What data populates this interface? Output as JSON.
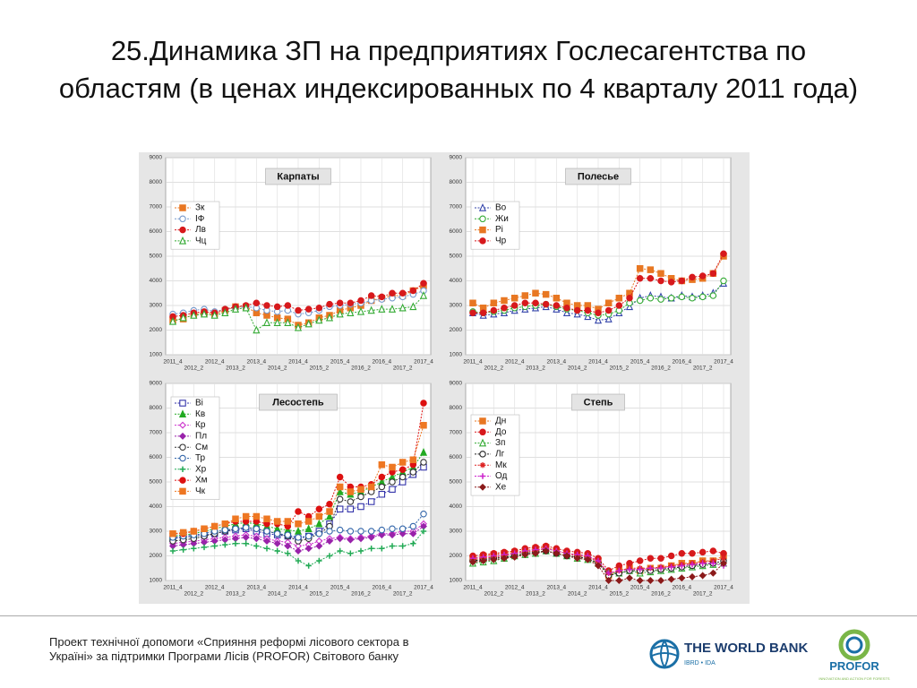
{
  "slide_title": "25.Динамика ЗП на предприятиях Гослесагентства по областям (в ценах индексированных по 4 кварталу 2011 года)",
  "footer_text": "Проект технічної допомоги «Сприяння реформі лісового сектора в Україні» за підтримки Програми Лісів (PROFOR) Світового банку",
  "world_bank": {
    "name": "THE WORLD BANK",
    "sub": "IBRD • IDA"
  },
  "profor": {
    "name": "PROFOR",
    "sub": "INNOVATION AND ACTION FOR FORESTS"
  },
  "chart_data": [
    {
      "type": "line",
      "title": "Карпаты",
      "categories": [
        "2011_4",
        null,
        "2012_2",
        null,
        "2012_4",
        null,
        "2013_2",
        null,
        "2013_4",
        null,
        "2014_2",
        null,
        "2014_4",
        null,
        "2015_2",
        null,
        "2015_4",
        null,
        "2016_2",
        null,
        "2016_4",
        null,
        "2017_2",
        null,
        "2017_4"
      ],
      "ylim": [
        1000,
        9000
      ],
      "yticks": [
        1000,
        2000,
        3000,
        4000,
        5000,
        6000,
        7000,
        8000,
        9000
      ],
      "grid": true,
      "legend": "upper left",
      "series": [
        {
          "name": "Зк",
          "color": "#e87722",
          "marker": "square",
          "filled": true,
          "values": [
            2400,
            2450,
            2650,
            2700,
            2650,
            2800,
            2950,
            2950,
            2700,
            2600,
            2500,
            2450,
            2200,
            2300,
            2500,
            2600,
            2800,
            2900,
            3000,
            3200,
            3300,
            3400,
            3400,
            3600,
            3800
          ]
        },
        {
          "name": "ІФ",
          "color": "#7799cc",
          "marker": "circle",
          "filled": false,
          "values": [
            2650,
            2700,
            2800,
            2850,
            2750,
            2850,
            2900,
            2950,
            2900,
            2800,
            2750,
            2800,
            2650,
            2700,
            2800,
            2950,
            3000,
            3050,
            3100,
            3200,
            3250,
            3300,
            3350,
            3450,
            3600
          ]
        },
        {
          "name": "Лв",
          "color": "#d7191c",
          "marker": "circle",
          "filled": true,
          "values": [
            2550,
            2600,
            2700,
            2750,
            2700,
            2850,
            2950,
            3000,
            3100,
            3000,
            2950,
            3000,
            2800,
            2850,
            2900,
            3050,
            3100,
            3100,
            3200,
            3400,
            3350,
            3500,
            3500,
            3600,
            3900
          ]
        },
        {
          "name": "Чц",
          "color": "#33aa33",
          "marker": "triangle",
          "filled": false,
          "values": [
            2350,
            2500,
            2600,
            2650,
            2600,
            2700,
            2850,
            2900,
            2000,
            2300,
            2300,
            2300,
            2100,
            2250,
            2400,
            2500,
            2650,
            2700,
            2750,
            2800,
            2850,
            2850,
            2900,
            2950,
            3400
          ]
        }
      ]
    },
    {
      "type": "line",
      "title": "Полесье",
      "categories": [
        "2011_4",
        null,
        "2012_2",
        null,
        "2012_4",
        null,
        "2013_2",
        null,
        "2013_4",
        null,
        "2014_2",
        null,
        "2014_4",
        null,
        "2015_2",
        null,
        "2015_4",
        null,
        "2016_2",
        null,
        "2016_4",
        null,
        "2017_2",
        null,
        "2017_4"
      ],
      "ylim": [
        1000,
        9000
      ],
      "yticks": [
        1000,
        2000,
        3000,
        4000,
        5000,
        6000,
        7000,
        8000,
        9000
      ],
      "grid": true,
      "legend": "upper left",
      "series": [
        {
          "name": "Во",
          "color": "#3344aa",
          "marker": "triangle",
          "filled": false,
          "values": [
            2700,
            2600,
            2650,
            2700,
            2800,
            2850,
            2900,
            2950,
            2850,
            2700,
            2650,
            2550,
            2400,
            2450,
            2700,
            2950,
            3300,
            3400,
            3350,
            3300,
            3400,
            3350,
            3400,
            3500,
            3900
          ]
        },
        {
          "name": "Жи",
          "color": "#33aa33",
          "marker": "circle",
          "filled": false,
          "values": [
            2750,
            2700,
            2750,
            2800,
            2900,
            2950,
            3000,
            3050,
            2950,
            2850,
            2800,
            2700,
            2600,
            2650,
            2800,
            3100,
            3200,
            3300,
            3250,
            3300,
            3350,
            3300,
            3350,
            3400,
            4000
          ]
        },
        {
          "name": "Рі",
          "color": "#e87722",
          "marker": "square",
          "filled": true,
          "values": [
            3100,
            2900,
            3100,
            3200,
            3300,
            3400,
            3500,
            3450,
            3300,
            3100,
            3000,
            3000,
            2850,
            3100,
            3300,
            3500,
            4500,
            4450,
            4300,
            4100,
            4000,
            4050,
            4100,
            4300,
            5000
          ]
        },
        {
          "name": "Чр",
          "color": "#d7191c",
          "marker": "circle",
          "filled": true,
          "values": [
            2700,
            2700,
            2800,
            2900,
            3000,
            3100,
            3100,
            3050,
            3000,
            2900,
            2800,
            2800,
            2700,
            2800,
            3000,
            3300,
            4100,
            4100,
            4000,
            3950,
            4000,
            4150,
            4200,
            4300,
            5100
          ]
        }
      ]
    },
    {
      "type": "line",
      "title": "Лесостепь",
      "categories": [
        "2011_4",
        null,
        "2012_2",
        null,
        "2012_4",
        null,
        "2013_2",
        null,
        "2013_4",
        null,
        "2014_2",
        null,
        "2014_4",
        null,
        "2015_2",
        null,
        "2015_4",
        null,
        "2016_2",
        null,
        "2016_4",
        null,
        "2017_2",
        null,
        "2017_4"
      ],
      "ylim": [
        1000,
        9000
      ],
      "yticks": [
        1000,
        2000,
        3000,
        4000,
        5000,
        6000,
        7000,
        8000,
        9000
      ],
      "grid": true,
      "legend": "upper left",
      "series": [
        {
          "name": "Ві",
          "color": "#3333aa",
          "marker": "square",
          "filled": false,
          "values": [
            2700,
            2750,
            2800,
            2850,
            2900,
            3000,
            3050,
            3100,
            3000,
            2900,
            2850,
            2800,
            2700,
            2800,
            3000,
            3300,
            3900,
            3900,
            4000,
            4200,
            4500,
            4700,
            5000,
            5300,
            5600
          ]
        },
        {
          "name": "Кв",
          "color": "#22aa22",
          "marker": "triangle",
          "filled": true,
          "values": [
            2800,
            2850,
            2900,
            3000,
            3100,
            3200,
            3300,
            3350,
            3300,
            3200,
            3100,
            3050,
            3000,
            3100,
            3300,
            3600,
            4600,
            4500,
            4600,
            4800,
            5000,
            5200,
            5400,
            5600,
            6200
          ]
        },
        {
          "name": "Кр",
          "color": "#cc33cc",
          "marker": "diamond",
          "filled": false,
          "values": [
            2500,
            2550,
            2600,
            2650,
            2700,
            2750,
            2800,
            2850,
            2800,
            2700,
            2600,
            2550,
            2400,
            2450,
            2600,
            2700,
            2750,
            2700,
            2750,
            2800,
            2900,
            2900,
            3000,
            3000,
            3300
          ]
        },
        {
          "name": "Пл",
          "color": "#9922aa",
          "marker": "diamond",
          "filled": true,
          "values": [
            2400,
            2450,
            2500,
            2550,
            2600,
            2650,
            2700,
            2750,
            2700,
            2600,
            2500,
            2400,
            2200,
            2300,
            2400,
            2600,
            2700,
            2650,
            2700,
            2750,
            2850,
            2850,
            2900,
            2900,
            3200
          ]
        },
        {
          "name": "См",
          "color": "#333333",
          "marker": "circle",
          "filled": false,
          "values": [
            2600,
            2650,
            2700,
            2800,
            2900,
            3000,
            3100,
            3150,
            3100,
            3000,
            2900,
            2800,
            2600,
            2700,
            2900,
            3200,
            4300,
            4200,
            4400,
            4600,
            4800,
            5000,
            5200,
            5400,
            5800
          ]
        },
        {
          "name": "Тр",
          "color": "#3366aa",
          "marker": "circle",
          "filled": false,
          "values": [
            2750,
            2800,
            2850,
            2900,
            3000,
            3050,
            3100,
            3150,
            3100,
            3000,
            2900,
            2850,
            2750,
            2800,
            2900,
            3000,
            3050,
            3000,
            3000,
            3000,
            3050,
            3100,
            3100,
            3200,
            3700
          ]
        },
        {
          "name": "Хр",
          "color": "#22aa55",
          "marker": "plus",
          "filled": false,
          "values": [
            2200,
            2250,
            2300,
            2350,
            2400,
            2450,
            2500,
            2500,
            2400,
            2300,
            2200,
            2100,
            1800,
            1600,
            1800,
            2000,
            2200,
            2100,
            2200,
            2300,
            2300,
            2400,
            2400,
            2500,
            3000
          ]
        },
        {
          "name": "Хм",
          "color": "#dd1111",
          "marker": "circle",
          "filled": true,
          "values": [
            2900,
            2900,
            3000,
            3100,
            3200,
            3300,
            3400,
            3400,
            3400,
            3300,
            3300,
            3200,
            3800,
            3600,
            3900,
            4100,
            5200,
            4800,
            4800,
            4900,
            5200,
            5400,
            5500,
            5700,
            8200
          ]
        },
        {
          "name": "Чк",
          "color": "#ee7722",
          "marker": "square",
          "filled": true,
          "values": [
            2900,
            2950,
            3000,
            3100,
            3200,
            3300,
            3500,
            3600,
            3600,
            3500,
            3400,
            3400,
            3300,
            3400,
            3600,
            3800,
            4800,
            4600,
            4700,
            4800,
            5700,
            5600,
            5800,
            5900,
            7300
          ]
        }
      ]
    },
    {
      "type": "line",
      "title": "Степь",
      "categories": [
        "2011_4",
        null,
        "2012_2",
        null,
        "2012_4",
        null,
        "2013_2",
        null,
        "2013_4",
        null,
        "2014_2",
        null,
        "2014_4",
        null,
        "2015_2",
        null,
        "2015_4",
        null,
        "2016_2",
        null,
        "2016_4",
        null,
        "2017_2",
        null,
        "2017_4"
      ],
      "ylim": [
        1000,
        9000
      ],
      "yticks": [
        1000,
        2000,
        3000,
        4000,
        5000,
        6000,
        7000,
        8000,
        9000
      ],
      "grid": true,
      "legend": "upper left",
      "series": [
        {
          "name": "Дн",
          "color": "#e87722",
          "marker": "square",
          "filled": true,
          "values": [
            1900,
            2000,
            2050,
            2100,
            2150,
            2200,
            2300,
            2350,
            2200,
            2100,
            2050,
            2000,
            1800,
            1200,
            1400,
            1500,
            1400,
            1500,
            1500,
            1600,
            1700,
            1700,
            1800,
            1800,
            2000
          ]
        },
        {
          "name": "До",
          "color": "#d7191c",
          "marker": "circle",
          "filled": true,
          "values": [
            2000,
            2050,
            2100,
            2150,
            2200,
            2300,
            2350,
            2400,
            2300,
            2200,
            2150,
            2100,
            1900,
            1400,
            1600,
            1700,
            1800,
            1900,
            1900,
            2000,
            2100,
            2100,
            2150,
            2200,
            2100
          ]
        },
        {
          "name": "Зп",
          "color": "#33aa33",
          "marker": "triangle",
          "filled": false,
          "values": [
            1700,
            1750,
            1800,
            1900,
            2000,
            2050,
            2100,
            2200,
            2100,
            2000,
            1900,
            1850,
            1700,
            1300,
            1300,
            1400,
            1300,
            1350,
            1400,
            1450,
            1500,
            1550,
            1600,
            1650,
            1700
          ]
        },
        {
          "name": "Лг",
          "color": "#222222",
          "marker": "circle",
          "filled": false,
          "values": [
            1800,
            1850,
            1900,
            1950,
            2000,
            2100,
            2150,
            2200,
            2100,
            2000,
            1950,
            1900,
            1700,
            1200,
            1300,
            1400,
            1400,
            1400,
            1450,
            1500,
            1550,
            1600,
            1650,
            1700,
            1800
          ]
        },
        {
          "name": "Мк",
          "color": "#dd2222",
          "marker": "star",
          "filled": false,
          "values": [
            1850,
            1900,
            1950,
            2000,
            2100,
            2150,
            2200,
            2300,
            2200,
            2100,
            2000,
            1950,
            1750,
            1300,
            1400,
            1500,
            1500,
            1500,
            1550,
            1600,
            1650,
            1700,
            1750,
            1800,
            1900
          ]
        },
        {
          "name": "Од",
          "color": "#cc22cc",
          "marker": "plus",
          "filled": false,
          "values": [
            1900,
            1950,
            2000,
            2050,
            2100,
            2200,
            2250,
            2300,
            2200,
            2100,
            2050,
            2000,
            1800,
            1300,
            1400,
            1450,
            1450,
            1500,
            1500,
            1550,
            1600,
            1650,
            1700,
            1700,
            1600
          ]
        },
        {
          "name": "Хе",
          "color": "#8b1a1a",
          "marker": "diamond",
          "filled": true,
          "values": [
            1750,
            1800,
            1850,
            1900,
            1950,
            2050,
            2100,
            2200,
            2100,
            2000,
            1900,
            1850,
            1600,
            1000,
            1000,
            1100,
            1000,
            1000,
            1000,
            1050,
            1100,
            1150,
            1200,
            1300,
            1700
          ]
        }
      ]
    }
  ]
}
